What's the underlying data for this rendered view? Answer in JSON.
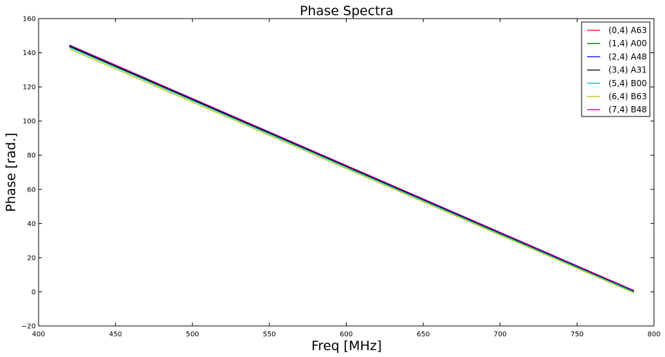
{
  "chart_data": {
    "type": "line",
    "title": "Phase Spectra",
    "xlabel": "Freq [MHz]",
    "ylabel": "Phase [rad.]",
    "xlim": [
      400,
      800
    ],
    "ylim": [
      -20,
      160
    ],
    "xticks": [
      400,
      450,
      500,
      550,
      600,
      650,
      700,
      750,
      800
    ],
    "yticks": [
      -20,
      0,
      20,
      40,
      60,
      80,
      100,
      120,
      140,
      160
    ],
    "xtick_labels": [
      "400",
      "450",
      "500",
      "550",
      "600",
      "650",
      "700",
      "750",
      "800"
    ],
    "ytick_labels": [
      "−20",
      "0",
      "20",
      "40",
      "60",
      "80",
      "100",
      "120",
      "140",
      "160"
    ],
    "grid": false,
    "legend_position": "top-right",
    "series": [
      {
        "name": "(0,4) A63",
        "color": "#ff0000",
        "x": [
          420,
          787
        ],
        "y": [
          143.5,
          0.0
        ]
      },
      {
        "name": "(1,4) A00",
        "color": "#008000",
        "x": [
          420,
          787
        ],
        "y": [
          143.8,
          0.2
        ]
      },
      {
        "name": "(2,4) A48",
        "color": "#0000ff",
        "x": [
          420,
          787
        ],
        "y": [
          144.3,
          0.5
        ]
      },
      {
        "name": "(3,4) A31",
        "color": "#000000",
        "x": [
          420,
          787
        ],
        "y": [
          144.0,
          0.3
        ]
      },
      {
        "name": "(5,4) B00",
        "color": "#00bfbf",
        "x": [
          420,
          787
        ],
        "y": [
          143.2,
          -0.1
        ]
      },
      {
        "name": "(6,4) B63",
        "color": "#bfbf00",
        "x": [
          420,
          787
        ],
        "y": [
          142.2,
          -0.6
        ]
      },
      {
        "name": "(7,4) B48",
        "color": "#bf00bf",
        "x": [
          420,
          787
        ],
        "y": [
          144.6,
          0.8
        ]
      }
    ]
  }
}
